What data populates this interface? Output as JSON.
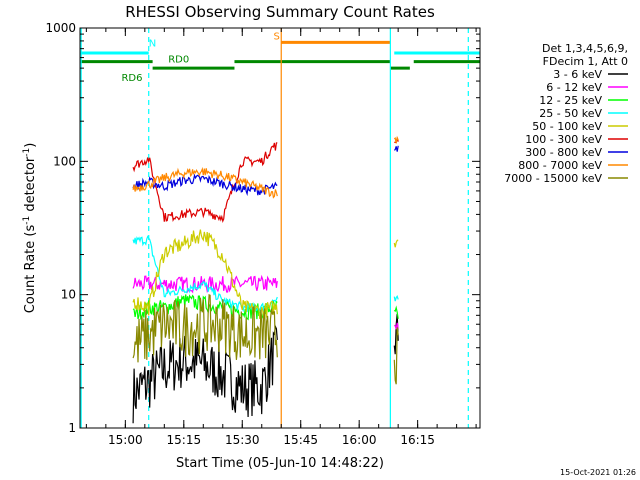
{
  "chart_data": {
    "type": "line",
    "title": "RHESSI Observing Summary Count Rates",
    "xlabel": "Start Time (05-Jun-10 14:48:22)",
    "ylabel": "Count Rate (s⁻¹ detector⁻¹)",
    "ylabel_main": "Count Rate (s",
    "ylabel_sup1": "-1",
    "ylabel_mid": " detector",
    "ylabel_sup2": "-1",
    "ylabel_end": ")",
    "y_scale": "log",
    "ylim": [
      1,
      1000
    ],
    "xlim": [
      "14:48:22",
      "16:31:00"
    ],
    "x_ticks": [
      {
        "t": "15:00",
        "label": "15:00"
      },
      {
        "t": "15:15",
        "label": "15:15"
      },
      {
        "t": "15:30",
        "label": "15:30"
      },
      {
        "t": "15:45",
        "label": "15:45"
      },
      {
        "t": "16:00",
        "label": "16:00"
      },
      {
        "t": "16:15",
        "label": "16:15"
      }
    ],
    "y_ticks": [
      {
        "value": 1,
        "label": "1"
      },
      {
        "value": 10,
        "label": "10"
      },
      {
        "value": 100,
        "label": "100"
      },
      {
        "value": 1000,
        "label": "1000"
      }
    ],
    "legend": {
      "placement": "right",
      "header": [
        "Det 1,3,4,5,6,9,",
        "FDecim 1, Att 0"
      ],
      "entries": [
        {
          "label": "3 - 6 keV",
          "color": "#000000"
        },
        {
          "label": "6 - 12 keV",
          "color": "#ff00ff"
        },
        {
          "label": "12 - 25 keV",
          "color": "#00ff00"
        },
        {
          "label": "25 - 50 keV",
          "color": "#00ffff"
        },
        {
          "label": "50 - 100 keV",
          "color": "#cccc00"
        },
        {
          "label": "100 - 300 keV",
          "color": "#dd0000"
        },
        {
          "label": "300 - 800 keV",
          "color": "#0000dd"
        },
        {
          "label": "800 - 7000 keV",
          "color": "#ff8800"
        },
        {
          "label": "7000 - 15000 keV",
          "color": "#888800"
        }
      ]
    },
    "segments": [
      {
        "start": "15:02",
        "end": "15:39"
      },
      {
        "start": "16:09",
        "end": "16:10"
      }
    ],
    "series": [
      {
        "name": "3 - 6 keV",
        "color": "#000000",
        "t": [
          "15:02",
          "15:06",
          "15:10",
          "15:15",
          "15:20",
          "15:25",
          "15:30",
          "15:35",
          "15:38",
          "16:09",
          "16:10"
        ],
        "values": [
          1.8,
          2.2,
          2.8,
          3.2,
          3.0,
          2.5,
          2.0,
          2.0,
          3.5,
          4.5,
          5
        ]
      },
      {
        "name": "6 - 12 keV",
        "color": "#ff00ff",
        "t": [
          "15:02",
          "15:06",
          "15:10",
          "15:15",
          "15:20",
          "15:25",
          "15:30",
          "15:35",
          "15:38",
          "16:09",
          "16:10"
        ],
        "values": [
          12,
          12,
          12,
          12,
          12,
          12,
          12,
          12,
          12,
          6,
          6
        ]
      },
      {
        "name": "12 - 25 keV",
        "color": "#00ff00",
        "t": [
          "15:02",
          "15:06",
          "15:10",
          "15:15",
          "15:20",
          "15:25",
          "15:30",
          "15:35",
          "15:38",
          "16:09",
          "16:10"
        ],
        "values": [
          7,
          8,
          8,
          9,
          8.5,
          8,
          7.5,
          7.5,
          8,
          7,
          7
        ]
      },
      {
        "name": "25 - 50 keV",
        "color": "#00ffff",
        "t": [
          "15:02",
          "15:06",
          "15:10",
          "15:15",
          "15:20",
          "15:25",
          "15:30",
          "15:35",
          "15:38",
          "16:09",
          "16:10"
        ],
        "values": [
          25,
          26,
          10,
          11,
          12,
          9,
          8,
          8,
          9,
          9,
          9
        ]
      },
      {
        "name": "50 - 100 keV",
        "color": "#cccc00",
        "t": [
          "15:02",
          "15:06",
          "15:10",
          "15:15",
          "15:20",
          "15:25",
          "15:30",
          "15:35",
          "15:38",
          "16:09",
          "16:10"
        ],
        "values": [
          9,
          8,
          21,
          24,
          29,
          20,
          8,
          7.5,
          8,
          25,
          27
        ]
      },
      {
        "name": "100 - 300 keV",
        "color": "#dd0000",
        "t": [
          "15:02",
          "15:06",
          "15:10",
          "15:15",
          "15:20",
          "15:25",
          "15:30",
          "15:35",
          "15:38",
          "16:09",
          "16:10"
        ],
        "values": [
          92,
          105,
          38,
          40,
          42,
          38,
          100,
          100,
          130,
          140,
          150
        ]
      },
      {
        "name": "300 - 800 keV",
        "color": "#0000dd",
        "t": [
          "15:02",
          "15:06",
          "15:10",
          "15:15",
          "15:20",
          "15:25",
          "15:30",
          "15:35",
          "15:38",
          "16:09",
          "16:10"
        ],
        "values": [
          65,
          70,
          65,
          72,
          74,
          68,
          62,
          60,
          64,
          115,
          130
        ]
      },
      {
        "name": "800 - 7000 keV",
        "color": "#ff8800",
        "t": [
          "15:02",
          "15:06",
          "15:10",
          "15:15",
          "15:20",
          "15:25",
          "15:30",
          "15:35",
          "15:38",
          "16:09",
          "16:10"
        ],
        "values": [
          62,
          67,
          75,
          82,
          84,
          78,
          70,
          62,
          58,
          145,
          150
        ]
      },
      {
        "name": "7000 - 15000 keV",
        "color": "#888800",
        "t": [
          "15:02",
          "15:06",
          "15:10",
          "15:15",
          "15:20",
          "15:25",
          "15:30",
          "15:35",
          "15:38",
          "16:09",
          "16:10"
        ],
        "values": [
          4,
          5,
          6,
          5.5,
          6,
          6,
          5,
          5,
          5,
          3.5,
          3.5
        ]
      }
    ],
    "flag_bars": [
      {
        "color": "#00ffff",
        "value": 650,
        "from": "14:48:22",
        "to": "15:06",
        "label": "N",
        "label_at": "15:06",
        "label_value": 780
      },
      {
        "color": "#00ffff",
        "value": 650,
        "from": "16:09",
        "to": "16:31"
      },
      {
        "color": "#ff8800",
        "value": 780,
        "from": "15:40",
        "to": "16:08",
        "label": "S",
        "label_at": "15:38",
        "label_value": 880
      },
      {
        "color": "#008800",
        "value": 560,
        "from": "14:48:22",
        "to": "15:07"
      },
      {
        "color": "#008800",
        "value": 500,
        "from": "15:07",
        "to": "15:28",
        "label": "RD6",
        "label_at": "14:59",
        "label_value": 430
      },
      {
        "color": "#008800",
        "value": 560,
        "from": "15:28",
        "to": "16:08",
        "label": "RD0",
        "label_at": "15:11",
        "label_value": 590
      },
      {
        "color": "#008800",
        "value": 500,
        "from": "16:08",
        "to": "16:13"
      },
      {
        "color": "#008800",
        "value": 560,
        "from": "16:14",
        "to": "16:31"
      }
    ],
    "vlines": [
      {
        "t": "14:48:40",
        "color": "#00ffff",
        "style": "solid"
      },
      {
        "t": "15:06",
        "color": "#00ffff",
        "style": "dashed"
      },
      {
        "t": "15:40",
        "color": "#ff8800",
        "style": "solid"
      },
      {
        "t": "16:08",
        "color": "#00ffff",
        "style": "solid"
      },
      {
        "t": "16:28",
        "color": "#00ffff",
        "style": "dashed"
      }
    ],
    "date_stamp": "15-Oct-2021 01:26"
  }
}
